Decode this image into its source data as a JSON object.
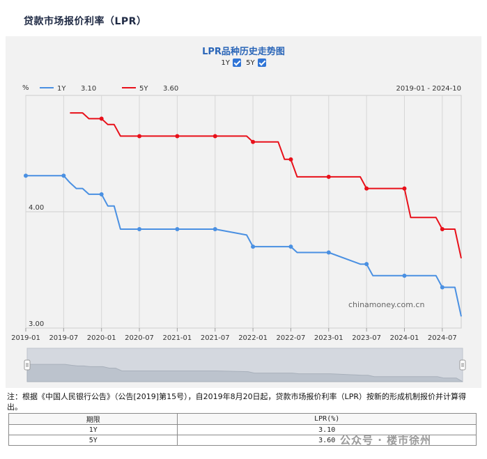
{
  "page": {
    "title": "贷款市场报价利率（LPR）"
  },
  "chart_data": {
    "type": "line",
    "title": "LPR品种历史走势图",
    "y_unit": "%",
    "date_range": "2019-01 - 2024-10",
    "ylim": [
      3.0,
      5.0
    ],
    "y_ticks": [
      "4.00",
      "3.00"
    ],
    "x_ticks": [
      "2019-01",
      "2019-07",
      "2020-01",
      "2020-07",
      "2021-01",
      "2021-07",
      "2022-01",
      "2022-07",
      "2023-01",
      "2023-07",
      "2024-01",
      "2024-07"
    ],
    "watermark": "chinamoney.com.cn",
    "series": [
      {
        "name": "1Y",
        "latest": "3.10",
        "color": "#4a90e2",
        "checked": true,
        "points": [
          [
            "2019-01",
            4.31
          ],
          [
            "2019-07",
            4.31
          ],
          [
            "2019-08",
            4.25
          ],
          [
            "2019-09",
            4.2
          ],
          [
            "2019-10",
            4.2
          ],
          [
            "2019-11",
            4.15
          ],
          [
            "2019-12",
            4.15
          ],
          [
            "2020-01",
            4.15
          ],
          [
            "2020-02",
            4.05
          ],
          [
            "2020-03",
            4.05
          ],
          [
            "2020-04",
            3.85
          ],
          [
            "2020-07",
            3.85
          ],
          [
            "2021-01",
            3.85
          ],
          [
            "2021-07",
            3.85
          ],
          [
            "2021-12",
            3.8
          ],
          [
            "2022-01",
            3.7
          ],
          [
            "2022-07",
            3.7
          ],
          [
            "2022-08",
            3.65
          ],
          [
            "2023-01",
            3.65
          ],
          [
            "2023-06",
            3.55
          ],
          [
            "2023-07",
            3.55
          ],
          [
            "2023-08",
            3.45
          ],
          [
            "2024-01",
            3.45
          ],
          [
            "2024-06",
            3.45
          ],
          [
            "2024-07",
            3.35
          ],
          [
            "2024-09",
            3.35
          ],
          [
            "2024-10",
            3.1
          ]
        ]
      },
      {
        "name": "5Y",
        "latest": "3.60",
        "color": "#e8101a",
        "checked": true,
        "points": [
          [
            "2019-08",
            4.85
          ],
          [
            "2019-10",
            4.85
          ],
          [
            "2019-11",
            4.8
          ],
          [
            "2020-01",
            4.8
          ],
          [
            "2020-02",
            4.75
          ],
          [
            "2020-03",
            4.75
          ],
          [
            "2020-04",
            4.65
          ],
          [
            "2020-07",
            4.65
          ],
          [
            "2021-01",
            4.65
          ],
          [
            "2021-07",
            4.65
          ],
          [
            "2021-12",
            4.65
          ],
          [
            "2022-01",
            4.6
          ],
          [
            "2022-05",
            4.6
          ],
          [
            "2022-06",
            4.45
          ],
          [
            "2022-07",
            4.45
          ],
          [
            "2022-08",
            4.3
          ],
          [
            "2023-01",
            4.3
          ],
          [
            "2023-06",
            4.3
          ],
          [
            "2023-07",
            4.2
          ],
          [
            "2024-01",
            4.2
          ],
          [
            "2024-02",
            3.95
          ],
          [
            "2024-06",
            3.95
          ],
          [
            "2024-07",
            3.85
          ],
          [
            "2024-09",
            3.85
          ],
          [
            "2024-10",
            3.6
          ]
        ]
      }
    ]
  },
  "note": "注：根据《中国人民银行公告》（公告[2019]第15号），自2019年8月20日起，贷款市场报价利率（LPR）按新的形成机制报价并计算得出。",
  "table": {
    "headers": [
      "期限",
      "LPR(%)"
    ],
    "rows": [
      [
        "1Y",
        "3.10"
      ],
      [
        "5Y",
        "3.60"
      ]
    ]
  },
  "watermark_text": "公众号 · 楼市徐州"
}
